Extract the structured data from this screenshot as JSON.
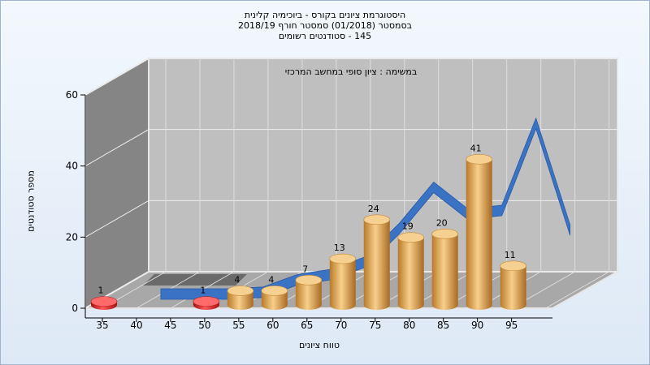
{
  "title": {
    "line1": "היסטוגרמת ציונים בקורס - ביוכימיה קלינית",
    "line2": "בסמסטר  (01/2018)  סמסטר חורף 2018/19",
    "line3": "145 - סטודנטים רשומים"
  },
  "chart_data": {
    "type": "bar",
    "title": "היסטוגרמת ציונים בקורס - ביוכימיה קלינית",
    "annotation": "במשימה : ציון סופי במחשב המרכזי",
    "xlabel": "טווח ציונים",
    "ylabel": "מספר סטודנטים",
    "ylim": [
      0,
      60
    ],
    "yticks": [
      0,
      20,
      40,
      60
    ],
    "xticks": [
      35,
      40,
      45,
      50,
      55,
      60,
      65,
      70,
      75,
      80,
      85,
      90,
      95
    ],
    "grid": true,
    "series": [
      {
        "type": "bar",
        "points": [
          {
            "x": 35,
            "value": 1,
            "color": "#dd2020"
          },
          {
            "x": 50,
            "value": 1,
            "color": "#dd2020"
          },
          {
            "x": 55,
            "value": 4,
            "color": "#e8a550"
          },
          {
            "x": 60,
            "value": 4,
            "color": "#e8a550"
          },
          {
            "x": 65,
            "value": 7,
            "color": "#e8a550"
          },
          {
            "x": 70,
            "value": 13,
            "color": "#e8a550"
          },
          {
            "x": 75,
            "value": 24,
            "color": "#e8a550"
          },
          {
            "x": 80,
            "value": 19,
            "color": "#e8a550"
          },
          {
            "x": 85,
            "value": 20,
            "color": "#e8a550"
          },
          {
            "x": 90,
            "value": 41,
            "color": "#e8a550"
          },
          {
            "x": 95,
            "value": 11,
            "color": "#e8a550"
          }
        ]
      },
      {
        "type": "line",
        "color": "#3a72c4",
        "x": [
          40,
          45,
          50,
          55,
          60,
          65,
          70,
          75,
          80,
          85,
          90,
          95,
          100
        ],
        "values": [
          0,
          0,
          0,
          0.5,
          4,
          5.5,
          9,
          18.5,
          30,
          22.5,
          23.5,
          48,
          18
        ]
      }
    ],
    "colors": {
      "wall": "#bfbfbf",
      "side_wall": "#858585",
      "floor": "#a8a8a8",
      "frame_edge": "#e6e6e6"
    }
  }
}
